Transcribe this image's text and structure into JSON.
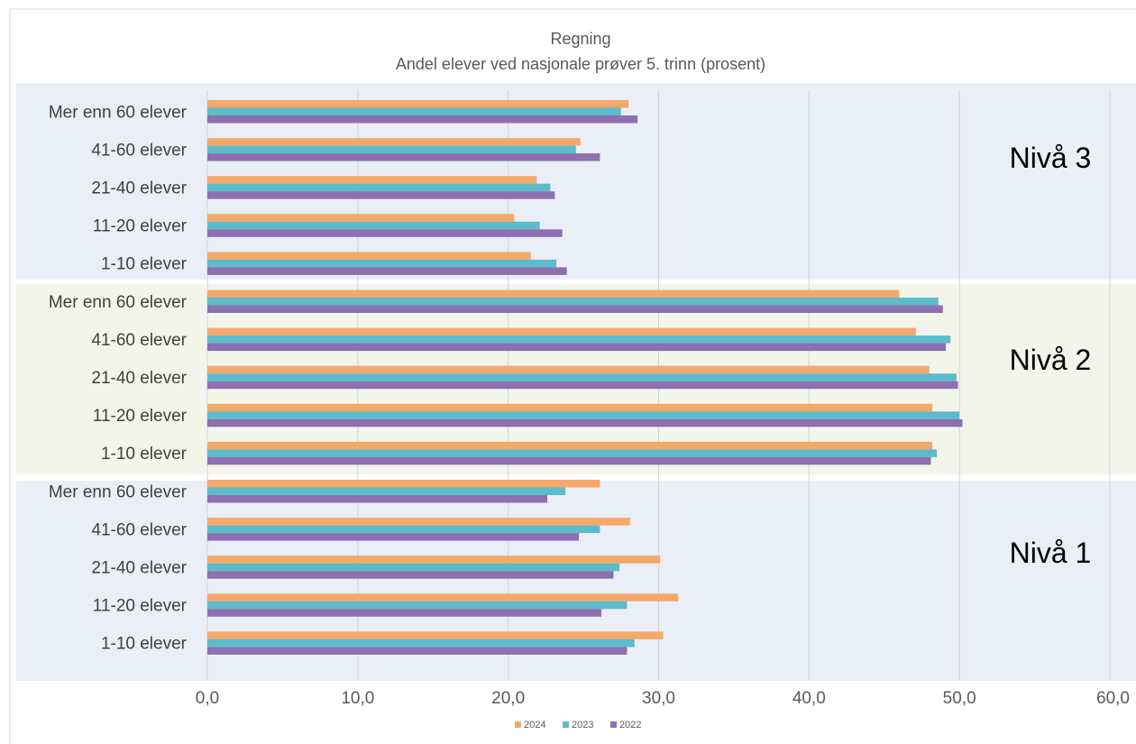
{
  "chart_data": {
    "type": "bar",
    "orientation": "horizontal",
    "title": "Regning",
    "subtitle": "Andel elever ved nasjonale prøver 5. trinn (prosent)",
    "xlabel": "",
    "ylabel": "",
    "xlim": [
      0,
      60
    ],
    "x_ticks": [
      "0,0",
      "10,0",
      "20,0",
      "30,0",
      "40,0",
      "50,0",
      "60,0"
    ],
    "x_tick_values": [
      0,
      10,
      20,
      30,
      40,
      50,
      60
    ],
    "grid": true,
    "legend_position": "bottom",
    "series_order": [
      "2024",
      "2023",
      "2022"
    ],
    "colors": {
      "2024": "#F4A86A",
      "2023": "#5BBCCB",
      "2022": "#8E6FB0"
    },
    "band_colors": {
      "Nivå 3": "#EAEEF7",
      "Nivå 2": "#F3F5EA",
      "Nivå 1": "#EAEEF7"
    },
    "levels": [
      {
        "name": "Nivå 3",
        "groups": [
          {
            "label": "Mer enn 60 elever",
            "values": {
              "2024": 28.0,
              "2023": 27.5,
              "2022": 28.6
            }
          },
          {
            "label": "41-60 elever",
            "values": {
              "2024": 24.8,
              "2023": 24.5,
              "2022": 26.1
            }
          },
          {
            "label": "21-40 elever",
            "values": {
              "2024": 21.9,
              "2023": 22.8,
              "2022": 23.1
            }
          },
          {
            "label": "11-20 elever",
            "values": {
              "2024": 20.4,
              "2023": 22.1,
              "2022": 23.6
            }
          },
          {
            "label": "1-10 elever",
            "values": {
              "2024": 21.5,
              "2023": 23.2,
              "2022": 23.9
            }
          }
        ]
      },
      {
        "name": "Nivå 2",
        "groups": [
          {
            "label": "Mer enn 60 elever",
            "values": {
              "2024": 46.0,
              "2023": 48.6,
              "2022": 48.9
            }
          },
          {
            "label": "41-60 elever",
            "values": {
              "2024": 47.1,
              "2023": 49.4,
              "2022": 49.1
            }
          },
          {
            "label": "21-40 elever",
            "values": {
              "2024": 48.0,
              "2023": 49.8,
              "2022": 49.9
            }
          },
          {
            "label": "11-20 elever",
            "values": {
              "2024": 48.2,
              "2023": 50.0,
              "2022": 50.2
            }
          },
          {
            "label": "1-10 elever",
            "values": {
              "2024": 48.2,
              "2023": 48.5,
              "2022": 48.1
            }
          }
        ]
      },
      {
        "name": "Nivå 1",
        "groups": [
          {
            "label": "Mer enn 60 elever",
            "values": {
              "2024": 26.1,
              "2023": 23.8,
              "2022": 22.6
            }
          },
          {
            "label": "41-60 elever",
            "values": {
              "2024": 28.1,
              "2023": 26.1,
              "2022": 24.7
            }
          },
          {
            "label": "21-40 elever",
            "values": {
              "2024": 30.1,
              "2023": 27.4,
              "2022": 27.0
            }
          },
          {
            "label": "11-20 elever",
            "values": {
              "2024": 31.3,
              "2023": 27.9,
              "2022": 26.2
            }
          },
          {
            "label": "1-10 elever",
            "values": {
              "2024": 30.3,
              "2023": 28.4,
              "2022": 27.9
            }
          }
        ]
      }
    ]
  }
}
